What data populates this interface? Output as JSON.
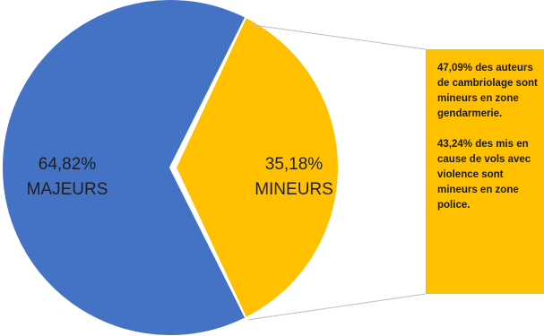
{
  "colors": {
    "majeurs": "#4472C4",
    "mineurs": "#FFC000",
    "connector": "#BFBFBF",
    "info_box": "#FFC000"
  },
  "chart_data": {
    "type": "pie",
    "title": "",
    "slices": [
      {
        "name": "MAJEURS",
        "value": 64.82,
        "value_label": "64,82%"
      },
      {
        "name": "MINEURS",
        "value": 35.18,
        "value_label": "35,18%"
      }
    ],
    "annotations": [
      "47,09% des auteurs de cambriolage sont mineurs en zone gendarmerie.",
      "43,24% des mis en cause de vols avec violence sont mineurs en zone police."
    ]
  }
}
